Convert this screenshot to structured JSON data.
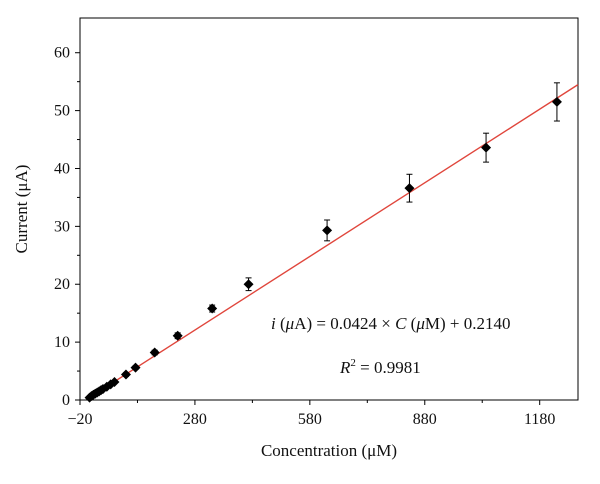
{
  "chart_data": {
    "type": "scatter",
    "xlabel": "Concentration (μM)",
    "ylabel": "Current (μA)",
    "xlim": [
      -20,
      1280
    ],
    "ylim": [
      0,
      66
    ],
    "x_ticks": [
      -20,
      280,
      580,
      880,
      1180
    ],
    "y_ticks": [
      0,
      10,
      20,
      30,
      40,
      50,
      60
    ],
    "x_tick_labels": [
      "−20",
      "280",
      "580",
      "880",
      "1180"
    ],
    "y_tick_labels": [
      "0",
      "10",
      "20",
      "30",
      "40",
      "50",
      "60"
    ],
    "grid": false,
    "legend": "none",
    "fit_line": {
      "slope": 0.0424,
      "intercept": 0.214,
      "color": "#e0463c"
    },
    "annotations": {
      "equation": "i (μA) = 0.0424 × C (μM) + 0.2140",
      "r_squared": "R2 = 0.9981"
    },
    "series": [
      {
        "marker": "diamond",
        "color": "#000000",
        "points": [
          {
            "x": 5,
            "y": 0.4,
            "err": 0.2
          },
          {
            "x": 10,
            "y": 0.7,
            "err": 0.2
          },
          {
            "x": 15,
            "y": 0.9,
            "err": 0.2
          },
          {
            "x": 20,
            "y": 1.1,
            "err": 0.2
          },
          {
            "x": 25,
            "y": 1.3,
            "err": 0.2
          },
          {
            "x": 30,
            "y": 1.5,
            "err": 0.2
          },
          {
            "x": 35,
            "y": 1.7,
            "err": 0.2
          },
          {
            "x": 40,
            "y": 1.9,
            "err": 0.2
          },
          {
            "x": 50,
            "y": 2.3,
            "err": 0.2
          },
          {
            "x": 60,
            "y": 2.7,
            "err": 0.2
          },
          {
            "x": 70,
            "y": 3.1,
            "err": 0.2
          },
          {
            "x": 100,
            "y": 4.4,
            "err": 0.3
          },
          {
            "x": 125,
            "y": 5.6,
            "err": 0.3
          },
          {
            "x": 175,
            "y": 8.2,
            "err": 0.4
          },
          {
            "x": 235,
            "y": 11.1,
            "err": 0.5
          },
          {
            "x": 325,
            "y": 15.8,
            "err": 0.6
          },
          {
            "x": 420,
            "y": 20.0,
            "err": 1.1
          },
          {
            "x": 625,
            "y": 29.3,
            "err": 1.8
          },
          {
            "x": 840,
            "y": 36.6,
            "err": 2.4
          },
          {
            "x": 1040,
            "y": 43.6,
            "err": 2.5
          },
          {
            "x": 1225,
            "y": 51.5,
            "err": 3.3
          }
        ]
      }
    ]
  }
}
